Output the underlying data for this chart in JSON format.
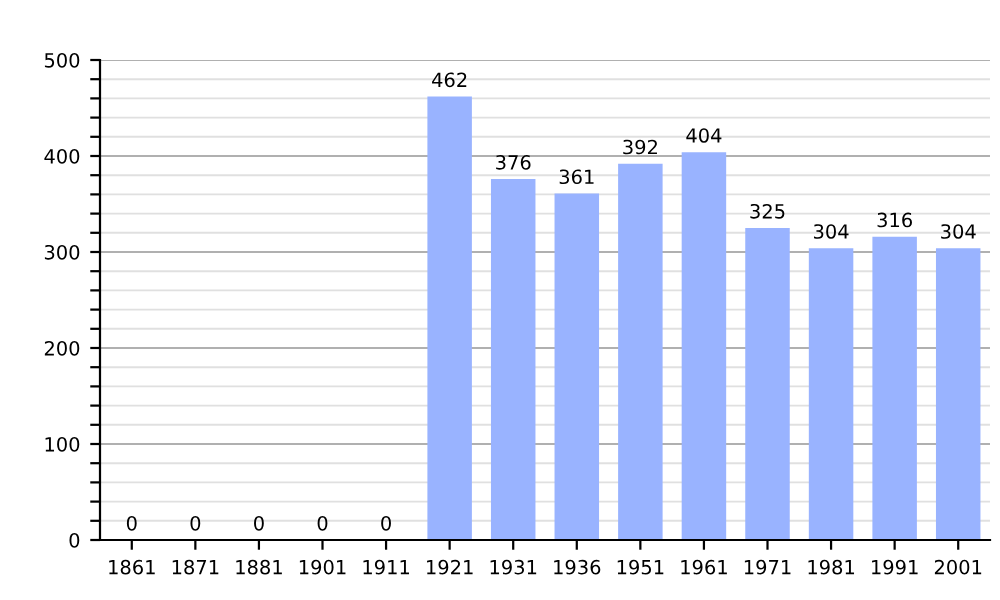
{
  "chart_data": {
    "type": "bar",
    "categories": [
      "1861",
      "1871",
      "1881",
      "1901",
      "1911",
      "1921",
      "1931",
      "1936",
      "1951",
      "1961",
      "1971",
      "1981",
      "1991",
      "2001"
    ],
    "values": [
      0,
      0,
      0,
      0,
      0,
      462,
      376,
      361,
      392,
      404,
      325,
      304,
      316,
      304
    ],
    "color": "#99b3ff",
    "ylim": [
      0,
      500
    ],
    "yticks": [
      0,
      {
        "value": 20,
        "label": null
      },
      {
        "value": 40,
        "label": null
      },
      {
        "value": 60,
        "label": null
      },
      {
        "value": 80,
        "label": null
      },
      100,
      {
        "value": 120,
        "label": null
      },
      {
        "value": 140,
        "label": null
      },
      {
        "value": 160,
        "label": null
      },
      {
        "value": 180,
        "label": null
      },
      200,
      {
        "value": 220,
        "label": null
      },
      {
        "value": 240,
        "label": null
      },
      {
        "value": 260,
        "label": null
      },
      {
        "value": 280,
        "label": null
      },
      300,
      {
        "value": 320,
        "label": null
      },
      {
        "value": 340,
        "label": null
      },
      {
        "value": 360,
        "label": null
      },
      {
        "value": 380,
        "label": null
      },
      400,
      {
        "value": 420,
        "label": null
      },
      {
        "value": 440,
        "label": null
      },
      {
        "value": 460,
        "label": null
      },
      {
        "value": 480,
        "label": null
      },
      500
    ],
    "grid": "y",
    "data_labels": true
  }
}
